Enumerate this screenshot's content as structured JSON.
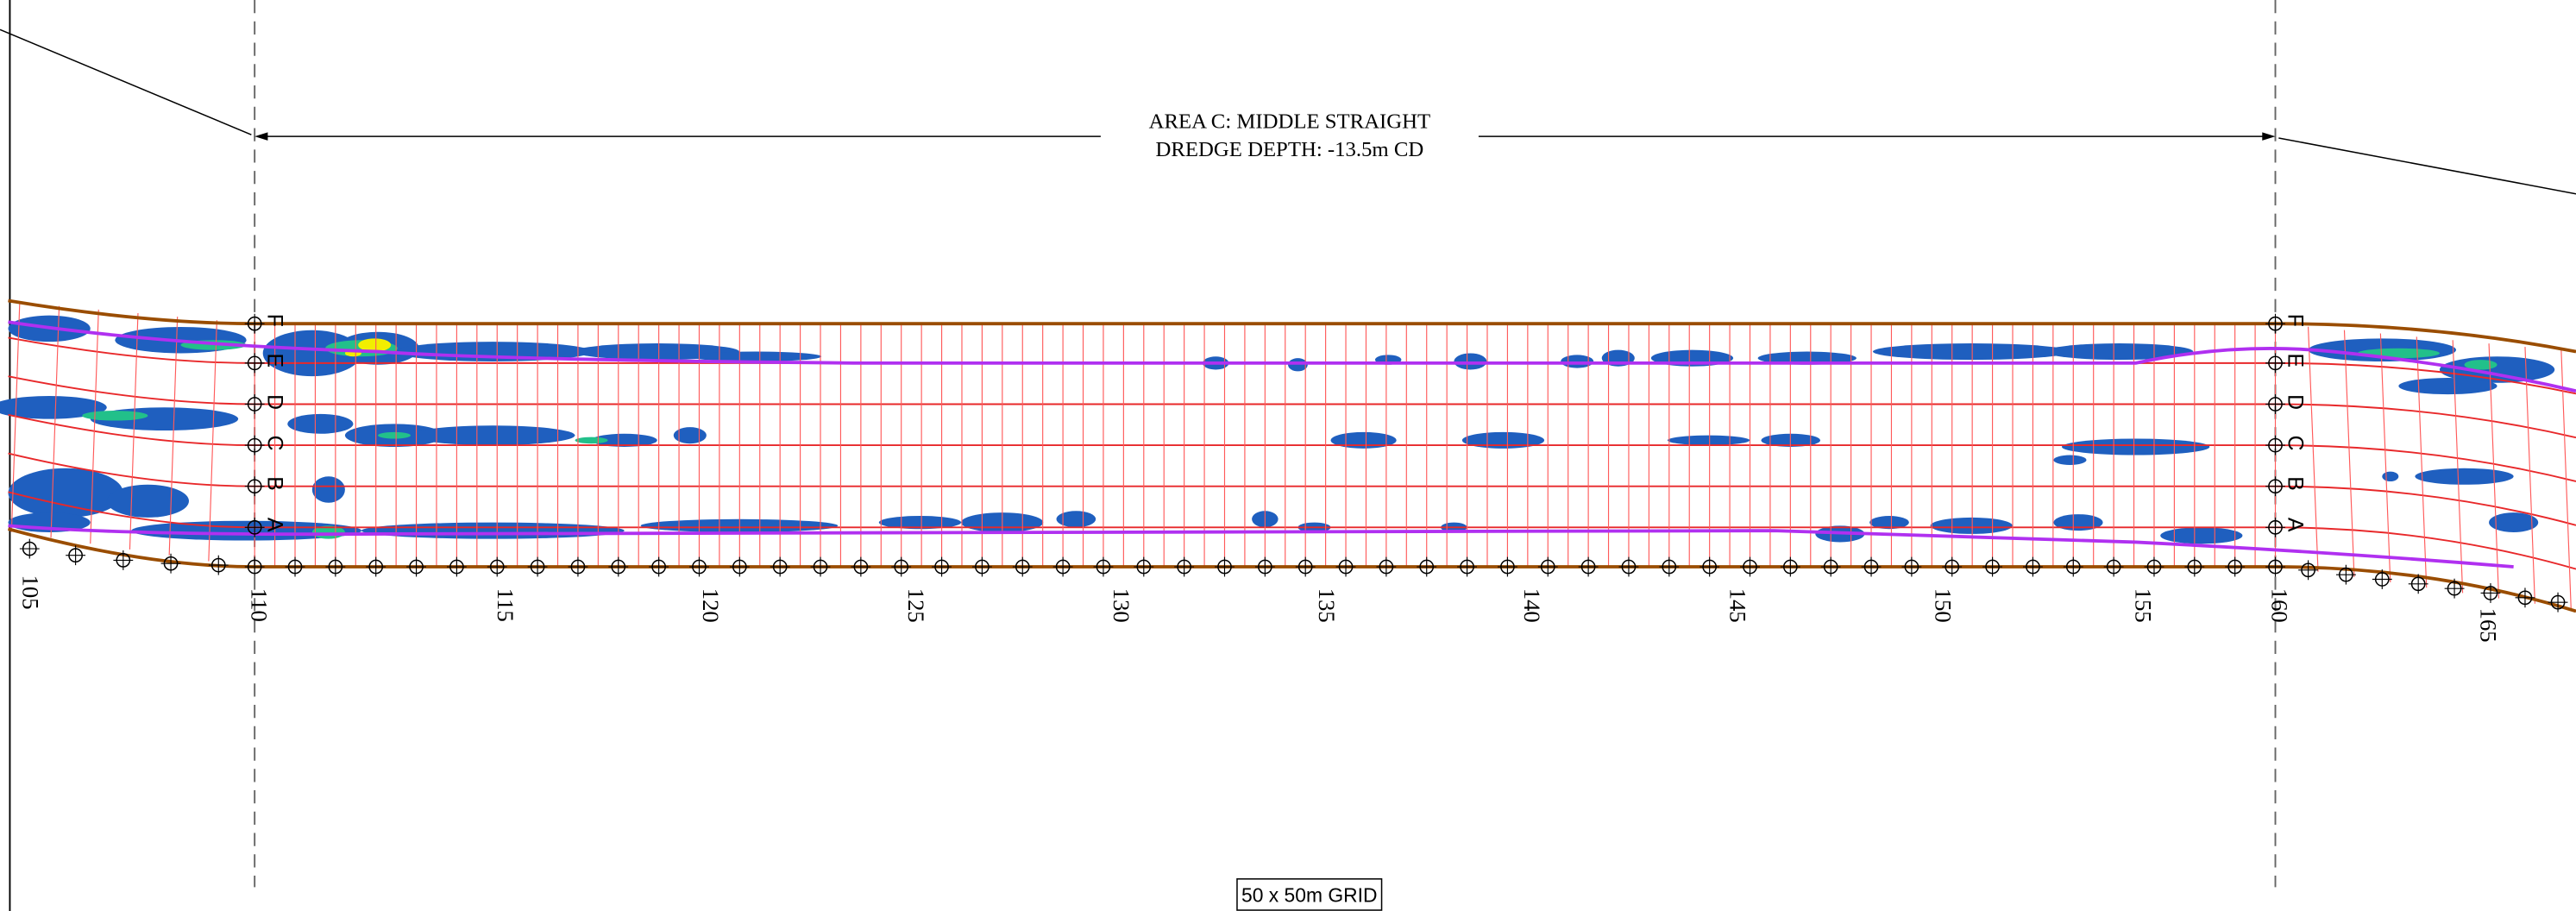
{
  "annotation": {
    "line1": "AREA C: MIDDLE STRAIGHT",
    "line2": "DREDGE DEPTH: -13.5m CD"
  },
  "grid_label": "50 x 50m GRID",
  "chainages": [
    "105",
    "110",
    "115",
    "120",
    "125",
    "130",
    "135",
    "140",
    "145",
    "150",
    "155",
    "160",
    "165"
  ],
  "rows": [
    "A",
    "B",
    "C",
    "D",
    "E",
    "F"
  ]
}
